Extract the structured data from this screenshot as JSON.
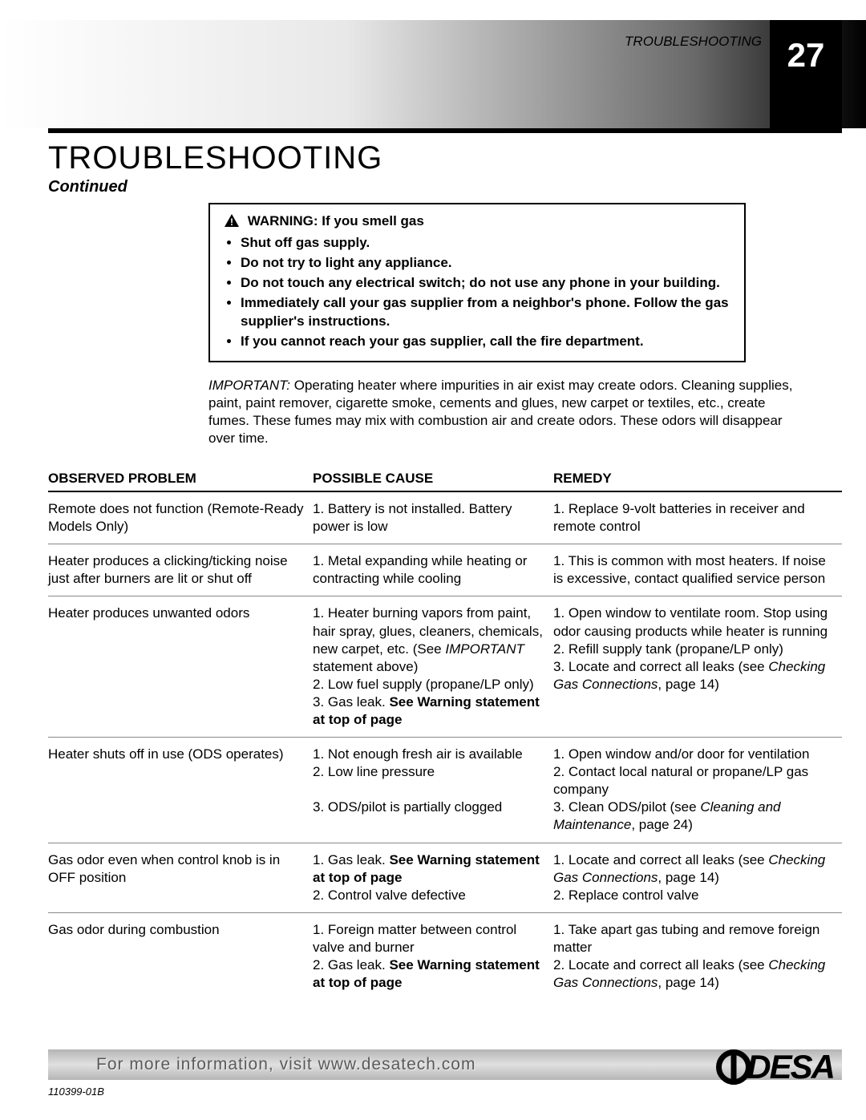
{
  "header": {
    "section_label": "TROUBLESHOOTING",
    "page_number": "27"
  },
  "title": "TROUBLESHOOTING",
  "continued": "Continued",
  "warning": {
    "heading": "WARNING: If you smell gas",
    "items": [
      "Shut off gas supply.",
      "Do not try to light any appliance.",
      "Do not touch any electrical switch; do not use any phone in your building.",
      "Immediately call your gas supplier from a neighbor's phone. Follow the gas supplier's instructions.",
      "If you cannot reach your gas supplier, call the fire department."
    ]
  },
  "important": {
    "lead": "IMPORTANT:",
    "body": "Operating heater where impurities in air exist may create odors. Cleaning supplies, paint, paint remover, cigarette smoke, cements and glues, new carpet or textiles, etc., create fumes. These fumes may mix with combustion air and create odors. These odors will disappear over time."
  },
  "table": {
    "headers": {
      "c1": "OBSERVED PROBLEM",
      "c2": "POSSIBLE CAUSE",
      "c3": "REMEDY"
    },
    "col_widths": [
      "330px",
      "300px",
      "auto"
    ],
    "rows": [
      {
        "problem": "Remote does not function (Remote-Ready Models Only)",
        "cause_html": "1. Battery is not installed. Battery power is low",
        "remedy_html": "1. Replace 9-volt batteries in receiver and remote control"
      },
      {
        "problem": "Heater produces a clicking/ticking noise just after burners are lit or shut off",
        "cause_html": "1. Metal expanding while heating or contracting while cooling",
        "remedy_html": "1. This is common with most heaters. If noise is excessive, contact qualified service person"
      },
      {
        "problem": "Heater produces unwanted odors",
        "cause_html": "1. Heater burning vapors from paint, hair spray, glues, cleaners, chemicals, new carpet, etc. (See <i>IMPORTANT</i> statement above)<br>2. Low fuel supply (propane/LP only)<br>3. Gas leak. <b>See Warning statement at top of page</b>",
        "remedy_html": "1. Open window to ventilate room. Stop using odor causing products while heater is running<br>2. Refill supply tank (propane/LP only)<br>3. Locate and correct all leaks (see <i>Checking Gas Connections</i>, page 14)"
      },
      {
        "problem": "Heater shuts off in use (ODS operates)",
        "cause_html": "1. Not enough fresh air is available<br>2. Low line pressure<br><br>3. ODS/pilot is partially clogged",
        "remedy_html": "1. Open window and/or door for ventilation<br>2. Contact local natural or propane/LP gas company<br>3. Clean ODS/pilot (see <i>Cleaning and Maintenance</i>, page 24)"
      },
      {
        "problem": "Gas odor even when control knob is in OFF position",
        "cause_html": "1. Gas leak. <b>See Warning statement at top of page</b><br>2. Control valve defective",
        "remedy_html": "1. Locate and correct all leaks (see <i>Checking Gas Connections</i>, page 14)<br>2. Replace control valve"
      },
      {
        "problem": "Gas odor during combustion",
        "cause_html": "1. Foreign matter between control valve and burner<br>2. Gas leak. <b>See Warning statement at top of page</b>",
        "remedy_html": "1. Take apart gas tubing and remove foreign matter<br>2. Locate and correct all leaks (see <i>Checking Gas Connections</i>, page 14)"
      }
    ]
  },
  "footer": {
    "text": "For more information, visit www.desatech.com",
    "logo_text": "DESA",
    "doc_number": "110399-01B"
  },
  "colors": {
    "page_bg": "#ffffff",
    "header_black": "#000000",
    "rule": "#000000",
    "row_border": "#888888",
    "footer_bar_mid": "#e0e0e0",
    "footer_bar_edge": "#b5b5b5",
    "footer_text": "#5a5a5a"
  },
  "fonts": {
    "body_size_pt": 13,
    "title_size_pt": 30,
    "pagenum_size_pt": 32
  }
}
